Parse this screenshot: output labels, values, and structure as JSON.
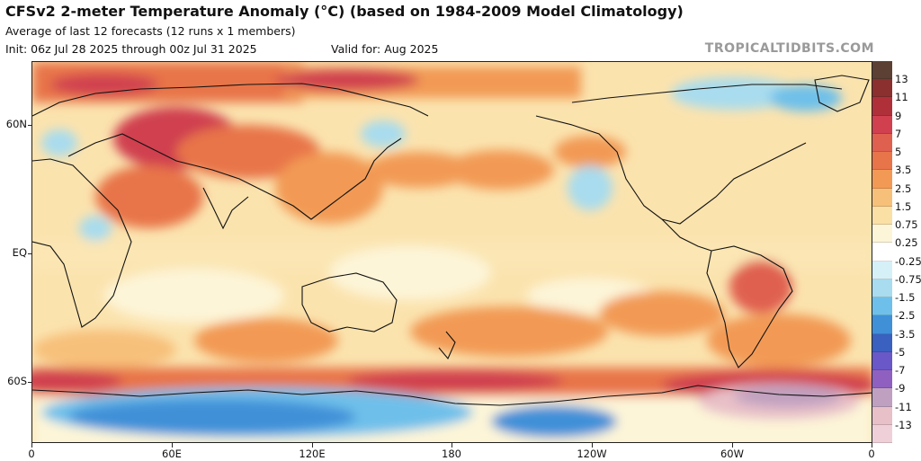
{
  "header": {
    "title": "CFSv2 2-meter Temperature Anomaly (°C) (based on 1984-2009 Model Climatology)",
    "subtitle": "Average of last 12 forecasts (12 runs x 1 members)",
    "init": "Init: 06z Jul 28 2025 through 00z Jul 31 2025",
    "valid": "Valid for: Aug 2025",
    "brand": "TROPICALTIDBITS.COM"
  },
  "map": {
    "latitude_labels": [
      "60N",
      "EQ",
      "60S"
    ],
    "longitude_labels": [
      "0",
      "60E",
      "120E",
      "180",
      "120W",
      "60W",
      "0"
    ]
  },
  "colorbar": {
    "labels": [
      "13",
      "11",
      "9",
      "7",
      "5",
      "3.5",
      "2.5",
      "1.5",
      "0.75",
      "0.25",
      "-0.25",
      "-0.75",
      "-1.5",
      "-2.5",
      "-3.5",
      "-5",
      "-7",
      "-9",
      "-11",
      "-13"
    ],
    "colors": [
      "#5c4033",
      "#8b2f2f",
      "#b0303a",
      "#d0404f",
      "#e06050",
      "#e8744a",
      "#f29a55",
      "#f7c07a",
      "#fbe0a6",
      "#fdf5d8",
      "#ffffff",
      "#d6f0f7",
      "#a8dcee",
      "#6ec0ea",
      "#4090d8",
      "#3a60c0",
      "#6a58c8",
      "#9060c0",
      "#c0a0c0",
      "#e8c0c8",
      "#f0d0d8"
    ]
  }
}
